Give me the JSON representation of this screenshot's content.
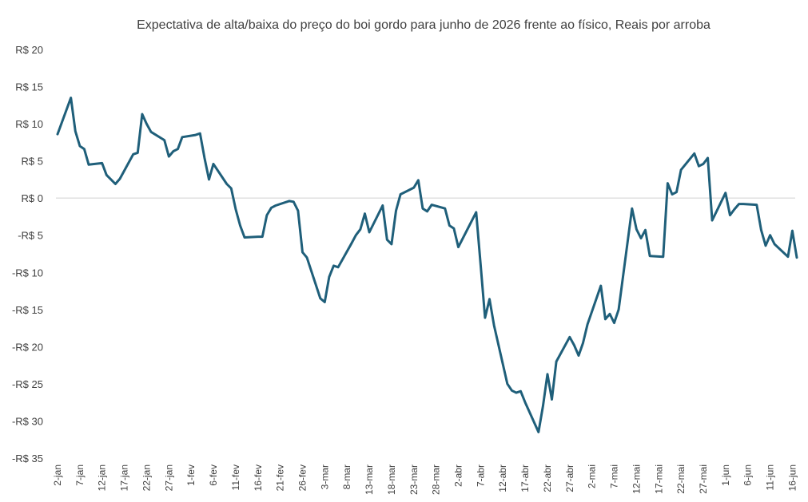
{
  "chart_data": {
    "type": "line",
    "title": "Expectativa de alta/baixa do preço do boi gordo para junho de 2026 frente ao físico, Reais por arroba",
    "xlabel": "",
    "ylabel": "",
    "ylim": [
      -35,
      20
    ],
    "yticks": [
      20,
      15,
      10,
      5,
      0,
      -5,
      -10,
      -15,
      -20,
      -25,
      -30,
      -35
    ],
    "ytick_labels": [
      "R$ 20",
      "R$ 15",
      "R$ 10",
      "R$ 5",
      "R$ 0",
      "-R$ 5",
      "-R$ 10",
      "-R$ 15",
      "-R$ 20",
      "-R$ 25",
      "-R$ 30",
      "-R$ 35"
    ],
    "xtick_labels": [
      "2-jan",
      "7-jan",
      "12-jan",
      "17-jan",
      "22-jan",
      "27-jan",
      "1-fev",
      "6-fev",
      "11-fev",
      "16-fev",
      "21-fev",
      "26-fev",
      "3-mar",
      "8-mar",
      "13-mar",
      "18-mar",
      "23-mar",
      "28-mar",
      "2-abr",
      "7-abr",
      "12-abr",
      "17-abr",
      "22-abr",
      "27-abr",
      "2-mai",
      "7-mai",
      "12-mai",
      "17-mai",
      "22-mai",
      "27-mai",
      "1-jun",
      "6-jun",
      "11-jun",
      "16-jun"
    ],
    "xtick_days": [
      0,
      5,
      10,
      15,
      20,
      25,
      30,
      35,
      40,
      45,
      50,
      55,
      60,
      65,
      70,
      75,
      80,
      85,
      90,
      95,
      100,
      105,
      110,
      115,
      120,
      125,
      130,
      135,
      140,
      145,
      150,
      155,
      160,
      165
    ],
    "grid": false,
    "legend": "none",
    "series_color": "#1f5f7a",
    "series": [
      {
        "x": [
          0,
          3,
          4,
          5,
          6,
          7,
          10,
          11,
          12,
          13,
          14,
          17,
          18,
          19,
          20,
          21,
          24,
          25,
          26,
          27,
          28,
          31,
          32,
          33,
          34,
          35,
          38,
          39,
          40,
          41,
          42,
          45,
          46,
          47,
          48,
          49,
          52,
          53,
          54,
          55,
          56,
          59,
          60,
          61,
          62,
          63,
          66,
          67,
          68,
          69,
          70,
          73,
          74,
          75,
          76,
          77,
          80,
          81,
          82,
          83,
          84,
          87,
          88,
          89,
          90,
          94,
          95,
          96,
          97,
          98,
          101,
          102,
          103,
          104,
          105,
          108,
          109,
          110,
          111,
          112,
          115,
          116,
          117,
          118,
          119,
          122,
          123,
          124,
          125,
          126,
          129,
          130,
          131,
          132,
          133,
          136,
          137,
          138,
          139,
          140,
          143,
          144,
          145,
          146,
          147,
          150,
          151,
          152,
          153,
          154,
          157,
          158,
          159,
          160,
          161,
          164,
          165,
          166
        ],
        "values": [
          8.6,
          13.5,
          9.0,
          7.0,
          6.6,
          4.5,
          4.7,
          3.1,
          2.5,
          1.9,
          2.6,
          5.9,
          6.1,
          11.3,
          10.0,
          8.9,
          7.8,
          5.6,
          6.3,
          6.6,
          8.2,
          8.5,
          8.7,
          5.4,
          2.5,
          4.6,
          1.9,
          1.3,
          -1.5,
          -3.7,
          -5.3,
          -5.2,
          -5.2,
          -2.3,
          -1.3,
          -1.0,
          -0.4,
          -0.5,
          -1.7,
          -7.3,
          -8.0,
          -13.5,
          -14.0,
          -10.6,
          -9.1,
          -9.3,
          -6.1,
          -5.0,
          -4.2,
          -2.1,
          -4.6,
          -1.0,
          -5.6,
          -6.2,
          -1.7,
          0.5,
          1.4,
          2.4,
          -1.4,
          -1.8,
          -0.9,
          -1.4,
          -3.7,
          -4.1,
          -6.6,
          -1.9,
          -9.0,
          -16.1,
          -13.6,
          -17.1,
          -25.0,
          -25.9,
          -26.2,
          -26.0,
          -27.5,
          -31.5,
          -28.0,
          -23.7,
          -27.1,
          -22.0,
          -18.7,
          -19.8,
          -21.2,
          -19.5,
          -17.0,
          -11.8,
          -16.3,
          -15.6,
          -16.8,
          -15.0,
          -1.4,
          -4.2,
          -5.4,
          -4.3,
          -7.8,
          -7.9,
          2.0,
          0.5,
          0.8,
          3.8,
          6.0,
          4.3,
          4.6,
          5.4,
          -3.0,
          0.7,
          -2.3,
          -1.5,
          -0.8,
          -0.8,
          -0.9,
          -4.3,
          -6.4,
          -5.0,
          -6.2,
          -7.9,
          -4.4,
          -8.0
        ]
      }
    ]
  }
}
